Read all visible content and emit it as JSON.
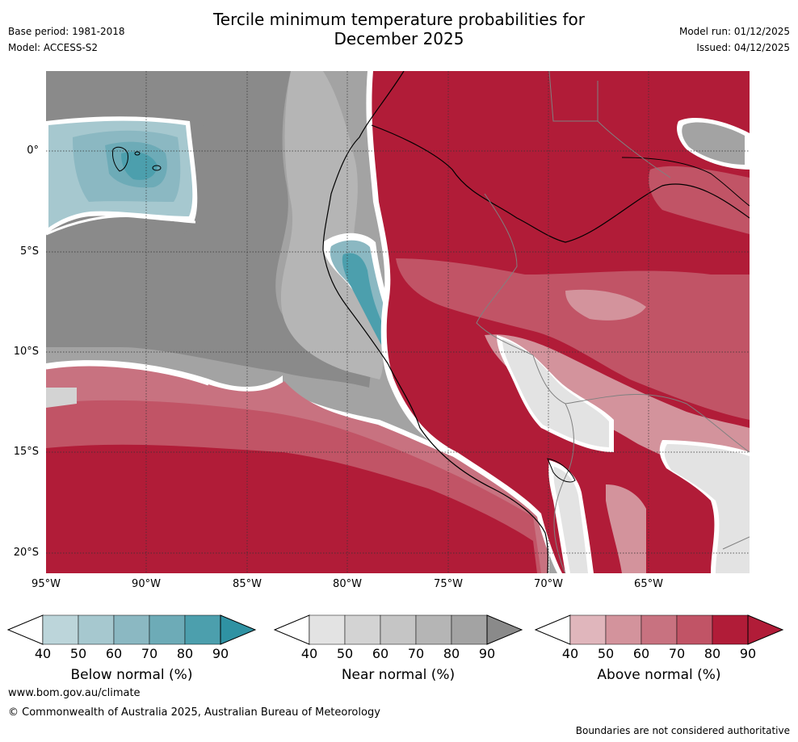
{
  "title": {
    "line1": "Tercile minimum temperature probabilities for",
    "line2": "December 2025"
  },
  "meta": {
    "base_period": "Base period: 1981-2018",
    "model": "Model: ACCESS-S2",
    "model_run": "Model run: 01/12/2025",
    "issued": "Issued: 04/12/2025"
  },
  "map": {
    "lat_labels": [
      "0°",
      "5°S",
      "10°S",
      "15°S",
      "20°S"
    ],
    "lon_labels": [
      "95°W",
      "90°W",
      "85°W",
      "80°W",
      "75°W",
      "70°W",
      "65°W"
    ]
  },
  "colorbars": [
    {
      "name": "below",
      "label": "Below normal (%)",
      "ticks": [
        "40",
        "50",
        "60",
        "70",
        "80",
        "90"
      ],
      "colors": [
        "#bcd5da",
        "#a6c8cf",
        "#8bb8c2",
        "#6dabb7",
        "#4c9fad",
        "#2f92a3"
      ]
    },
    {
      "name": "near",
      "label": "Near normal (%)",
      "ticks": [
        "40",
        "50",
        "60",
        "70",
        "80",
        "90"
      ],
      "colors": [
        "#e3e3e3",
        "#d3d3d3",
        "#c5c5c5",
        "#b5b5b5",
        "#a3a3a3",
        "#8a8a8a"
      ]
    },
    {
      "name": "above",
      "label": "Above normal (%)",
      "ticks": [
        "40",
        "50",
        "60",
        "70",
        "80",
        "90"
      ],
      "colors": [
        "#e0b6bc",
        "#d3939c",
        "#c87280",
        "#c15466",
        "#b53148",
        "#b11c38"
      ]
    }
  ],
  "footer": {
    "website": "www.bom.gov.au/climate",
    "copyright": "© Commonwealth of Australia 2025, Australian Bureau of Meteorology",
    "disclaimer": "Boundaries are not considered authoritative"
  }
}
